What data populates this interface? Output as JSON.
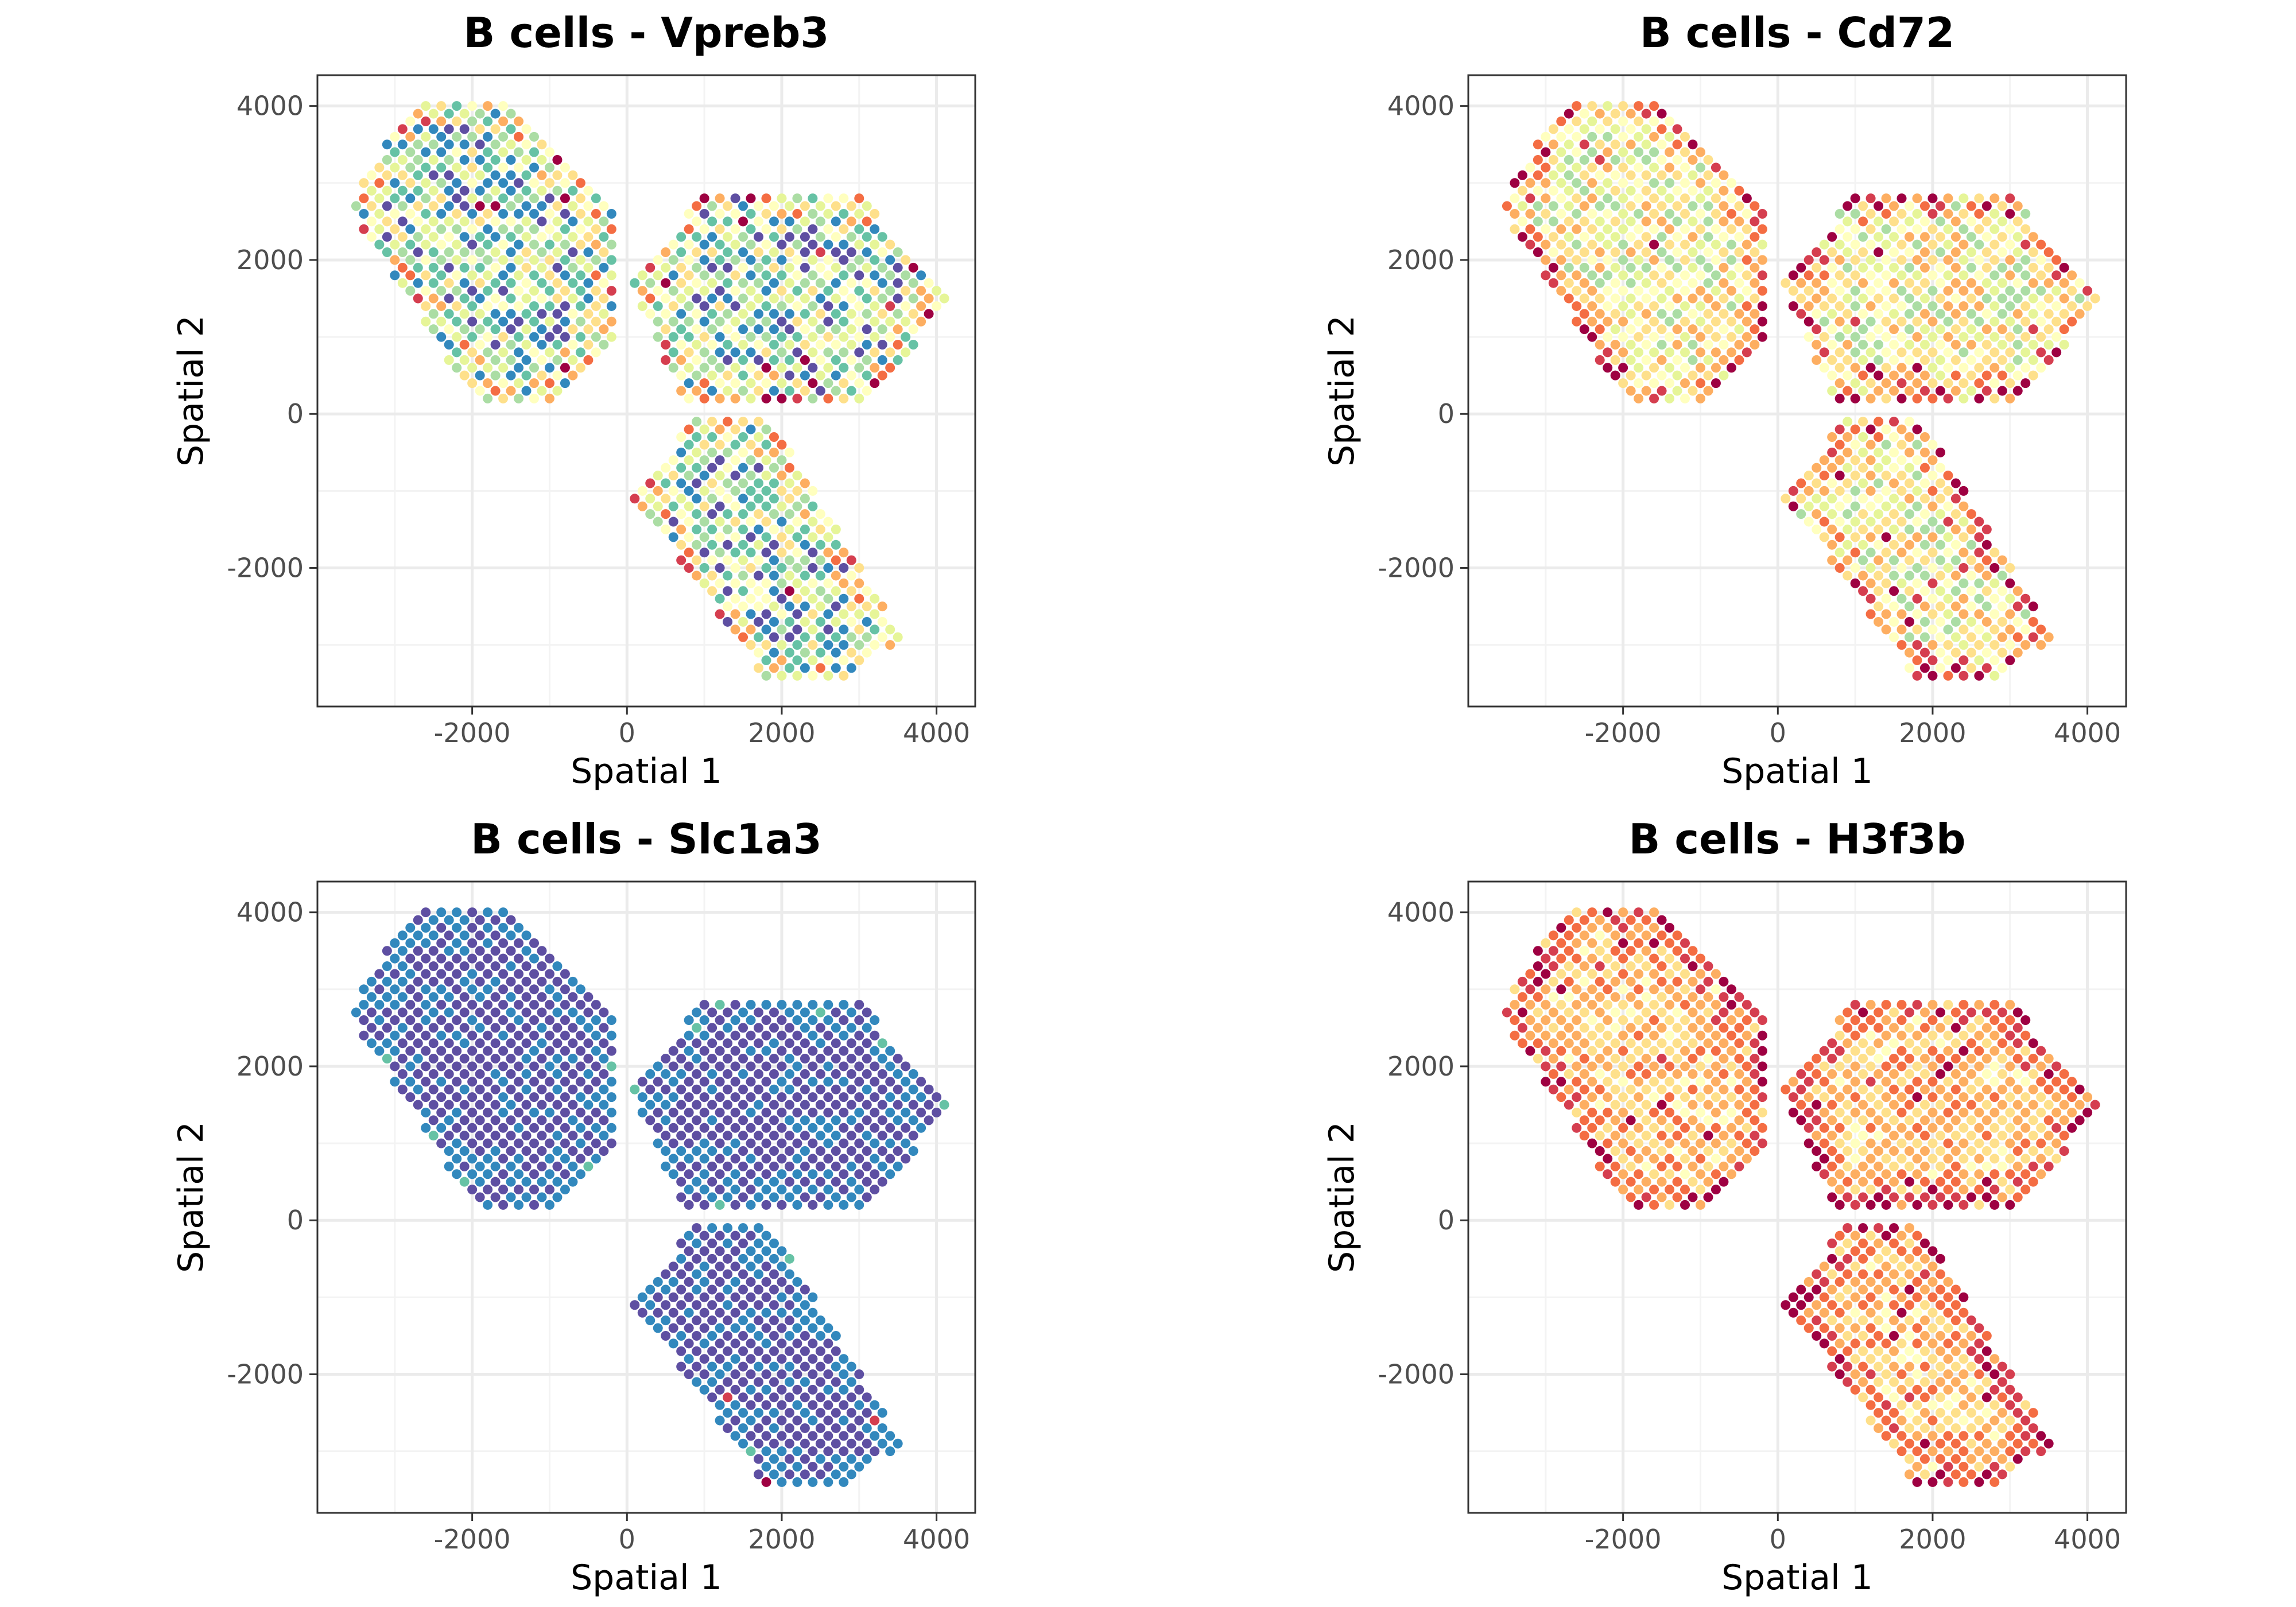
{
  "chart_data": [
    {
      "type": "scatter",
      "title": "B cells - Vpreb3",
      "xlabel": "Spatial 1",
      "ylabel": "Spatial 2",
      "xlim": [
        -4000,
        4500
      ],
      "ylim": [
        -3800,
        4400
      ],
      "xticks": [
        -2000,
        0,
        2000,
        4000
      ],
      "yticks": [
        -2000,
        0,
        2000,
        4000
      ],
      "xtick_labels": [
        "-2000",
        "0",
        "2000",
        "4000"
      ],
      "ytick_labels": [
        "-2000",
        "0",
        "2000",
        "4000"
      ],
      "grid": true,
      "legend": "none",
      "colormap": "Spectral",
      "pattern": {
        "seed": 11,
        "base": 0.02,
        "spread": 0.58,
        "edge_boost": 0.5,
        "rare_high": 0.015
      }
    },
    {
      "type": "scatter",
      "title": "B cells - Cd72",
      "xlabel": "Spatial 1",
      "ylabel": "Spatial 2",
      "xlim": [
        -4000,
        4500
      ],
      "ylim": [
        -3800,
        4400
      ],
      "xticks": [
        -2000,
        0,
        2000,
        4000
      ],
      "yticks": [
        -2000,
        0,
        2000,
        4000
      ],
      "xtick_labels": [
        "-2000",
        "0",
        "2000",
        "4000"
      ],
      "ytick_labels": [
        "-2000",
        "0",
        "2000",
        "4000"
      ],
      "grid": true,
      "legend": "none",
      "colormap": "Spectral",
      "pattern": {
        "seed": 29,
        "base": 0.28,
        "spread": 0.42,
        "edge_boost": 0.55,
        "rare_high": 0.02
      }
    },
    {
      "type": "scatter",
      "title": "B cells - Slc1a3",
      "xlabel": "Spatial 1",
      "ylabel": "Spatial 2",
      "xlim": [
        -4000,
        4500
      ],
      "ylim": [
        -3800,
        4400
      ],
      "xticks": [
        -2000,
        0,
        2000,
        4000
      ],
      "yticks": [
        -2000,
        0,
        2000,
        4000
      ],
      "xtick_labels": [
        "-2000",
        "0",
        "2000",
        "4000"
      ],
      "ytick_labels": [
        "-2000",
        "0",
        "2000",
        "4000"
      ],
      "grid": true,
      "legend": "none",
      "colormap": "Spectral",
      "pattern": {
        "seed": 47,
        "base": 0.0,
        "spread": 0.12,
        "edge_boost": 0.12,
        "rare_high": 0.004
      }
    },
    {
      "type": "scatter",
      "title": "B cells - H3f3b",
      "xlabel": "Spatial 1",
      "ylabel": "Spatial 2",
      "xlim": [
        -4000,
        4500
      ],
      "ylim": [
        -3800,
        4400
      ],
      "xticks": [
        -2000,
        0,
        2000,
        4000
      ],
      "yticks": [
        -2000,
        0,
        2000,
        4000
      ],
      "xtick_labels": [
        "-2000",
        "0",
        "2000",
        "4000"
      ],
      "ytick_labels": [
        "-2000",
        "0",
        "2000",
        "4000"
      ],
      "grid": true,
      "legend": "none",
      "colormap": "Spectral",
      "pattern": {
        "seed": 83,
        "base": 0.52,
        "spread": 0.25,
        "edge_boost": 0.45,
        "rare_high": 0.03
      }
    }
  ],
  "colors": {
    "background": "#ffffff",
    "grid": "#ebebeb",
    "border": "#333333",
    "spectral": [
      "#5e4fa2",
      "#3288bd",
      "#66c2a5",
      "#abdda4",
      "#e6f598",
      "#ffffbf",
      "#fee08b",
      "#fdae61",
      "#f46d43",
      "#d53e4f",
      "#9e0142"
    ]
  }
}
